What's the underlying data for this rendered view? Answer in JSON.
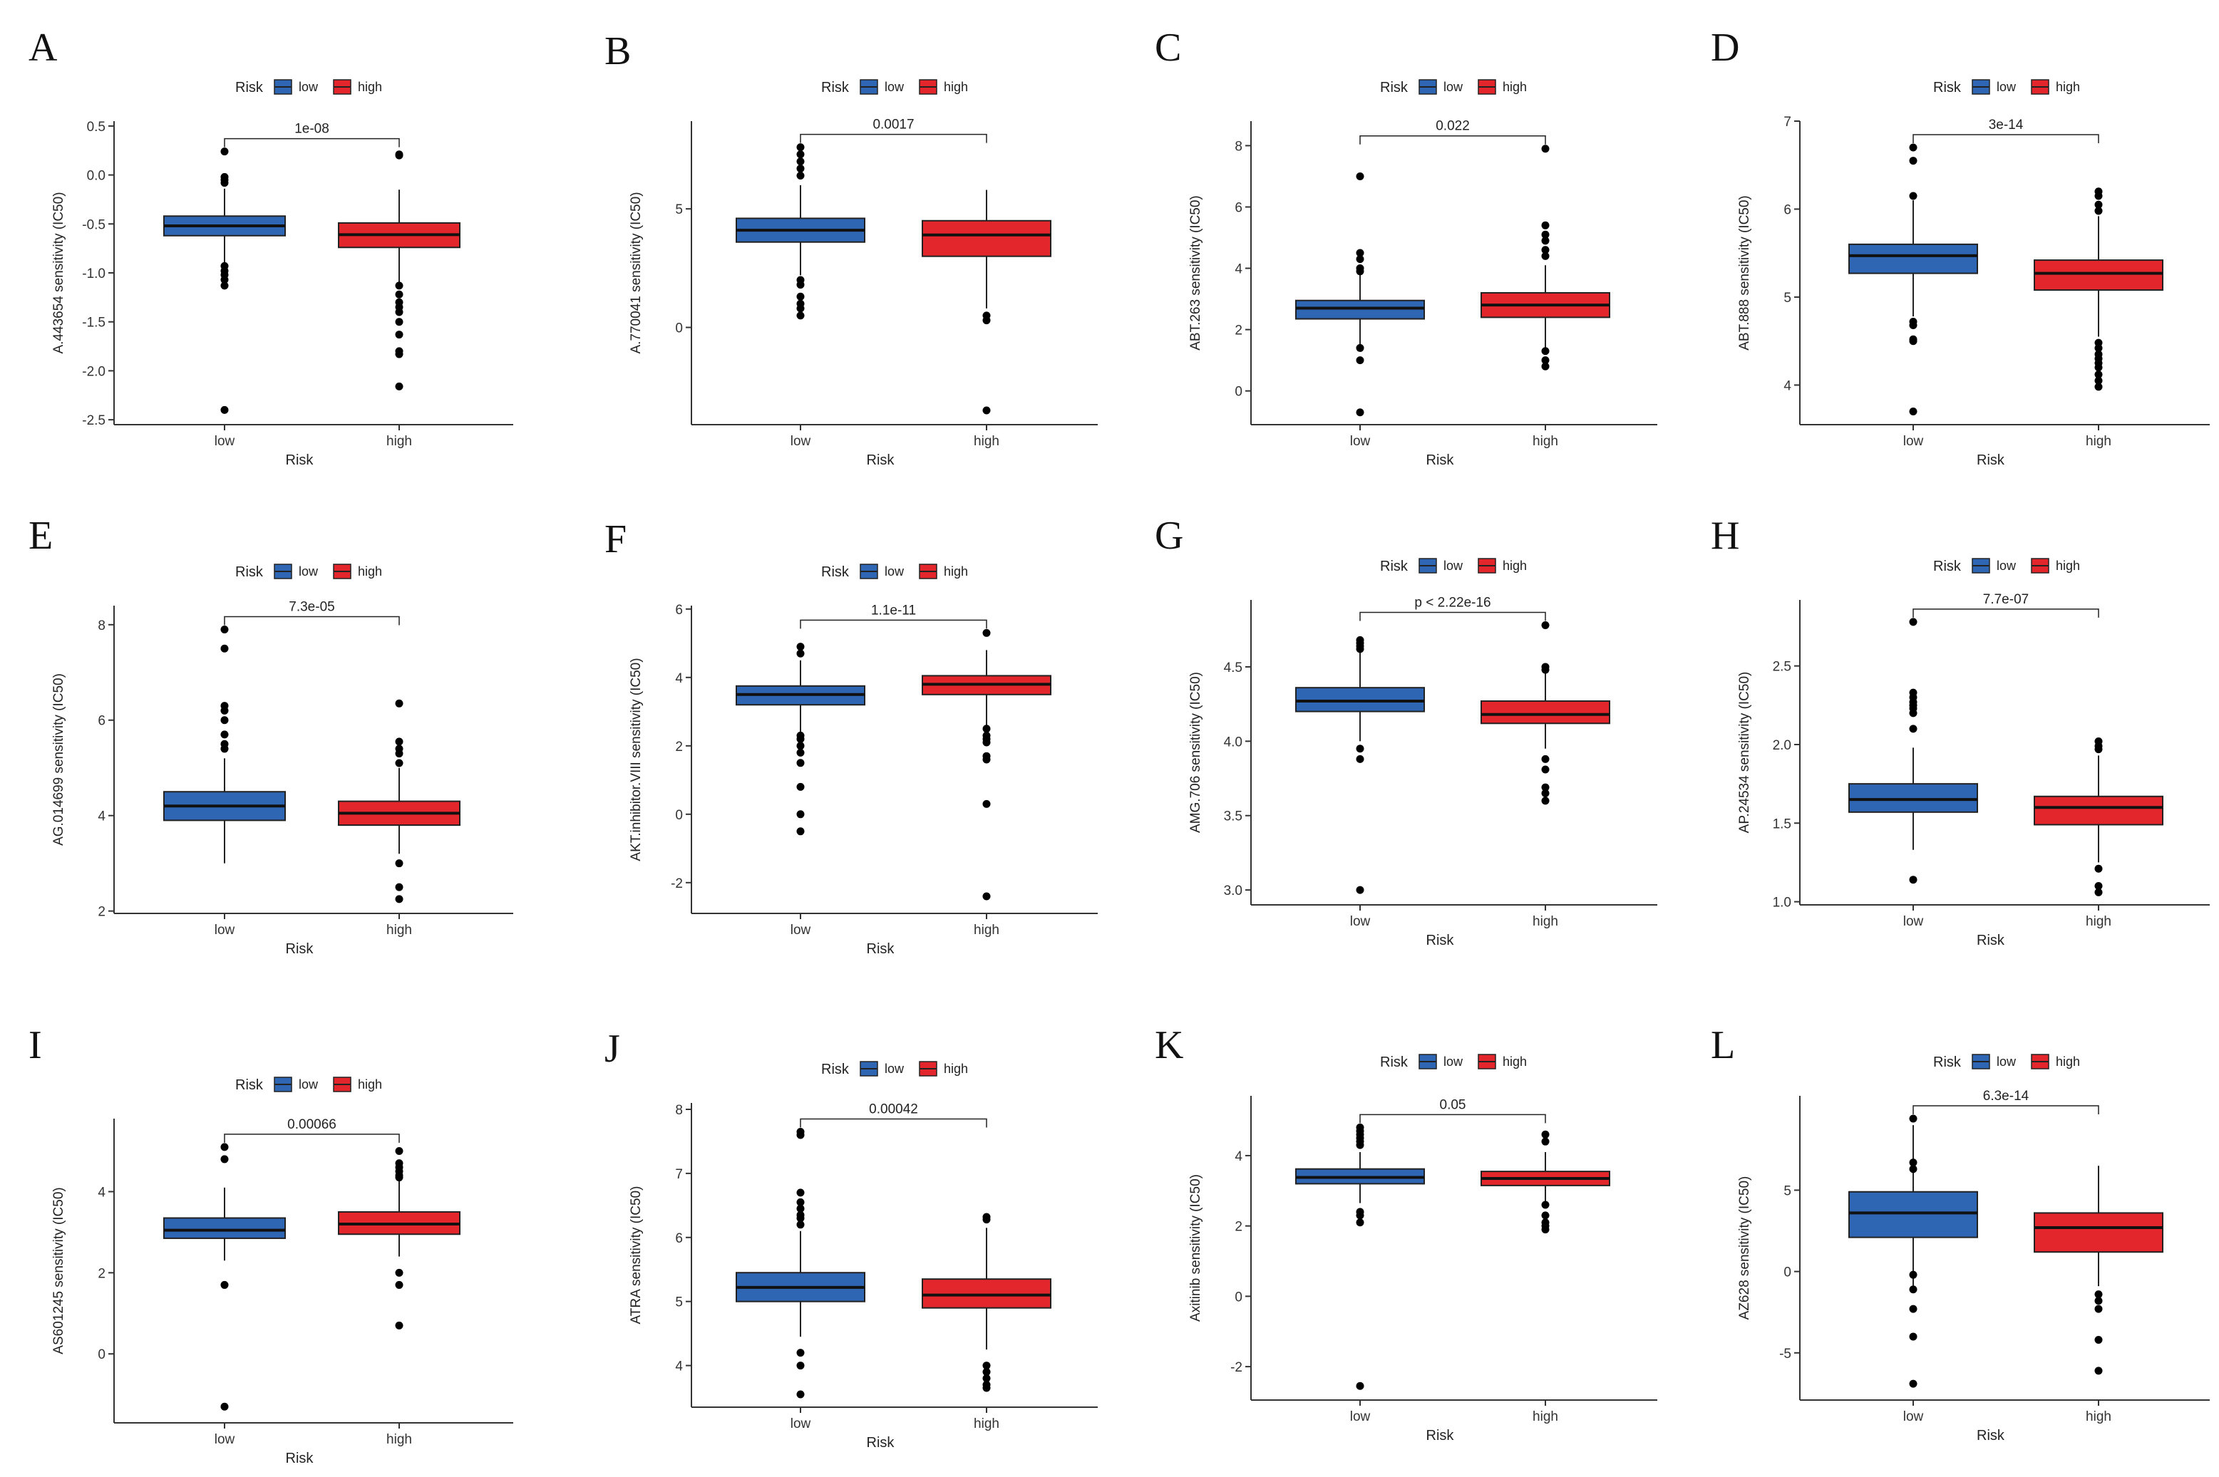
{
  "colors": {
    "low": "#2f66b3",
    "high": "#e3262b",
    "axis": "#333333",
    "point": "#000000"
  },
  "chart_data": [
    {
      "panel": "A",
      "type": "box",
      "ylabel": "A.443654 sensitivity (IC50)",
      "xlabel": "Risk",
      "legend_title": "Risk",
      "legend": [
        "low",
        "high"
      ],
      "categories": [
        "low",
        "high"
      ],
      "ylim": [
        -2.55,
        0.55
      ],
      "yticks": [
        "-2.5",
        "-2.0",
        "-1.5",
        "-1.0",
        "-0.5",
        "0.0",
        "0.5"
      ],
      "pvalue": "1e-08",
      "groups": [
        {
          "name": "low",
          "q1": -0.62,
          "median": -0.52,
          "q3": -0.42,
          "whisker_low": -0.91,
          "whisker_high": -0.14,
          "outliers": [
            0.24,
            -0.02,
            -0.05,
            -0.08,
            -0.93,
            -0.98,
            -1.02,
            -1.07,
            -1.13,
            -2.4
          ]
        },
        {
          "name": "high",
          "q1": -0.74,
          "median": -0.61,
          "q3": -0.49,
          "whisker_low": -1.11,
          "whisker_high": -0.15,
          "outliers": [
            0.21,
            0.2,
            -1.13,
            -1.22,
            -1.3,
            -1.35,
            -1.4,
            -1.5,
            -1.63,
            -1.8,
            -1.83,
            -2.16
          ]
        }
      ]
    },
    {
      "panel": "B",
      "type": "box",
      "ylabel": "A.770041 sensitivity (IC50)",
      "xlabel": "Risk",
      "legend_title": "Risk",
      "legend": [
        "low",
        "high"
      ],
      "categories": [
        "low",
        "high"
      ],
      "ylim": [
        -4.1,
        8.7
      ],
      "yticks": [
        "0",
        "5"
      ],
      "pvalue": "0.0017",
      "groups": [
        {
          "name": "low",
          "q1": 3.6,
          "median": 4.1,
          "q3": 4.6,
          "whisker_low": 2.2,
          "whisker_high": 6.0,
          "outliers": [
            7.6,
            7.3,
            7.0,
            6.7,
            6.4,
            2.0,
            1.8,
            1.3,
            1.0,
            0.8,
            0.5
          ]
        },
        {
          "name": "high",
          "q1": 3.0,
          "median": 3.9,
          "q3": 4.5,
          "whisker_low": 0.8,
          "whisker_high": 5.8,
          "outliers": [
            0.5,
            0.3,
            -3.5
          ]
        }
      ]
    },
    {
      "panel": "C",
      "type": "box",
      "ylabel": "ABT.263 sensitivity (IC50)",
      "xlabel": "Risk",
      "legend_title": "Risk",
      "legend": [
        "low",
        "high"
      ],
      "categories": [
        "low",
        "high"
      ],
      "ylim": [
        -1.1,
        8.8
      ],
      "yticks": [
        "0",
        "2",
        "4",
        "6",
        "8"
      ],
      "pvalue": "0.022",
      "groups": [
        {
          "name": "low",
          "q1": 2.35,
          "median": 2.7,
          "q3": 2.95,
          "whisker_low": 1.5,
          "whisker_high": 3.8,
          "outliers": [
            7.0,
            4.5,
            4.3,
            4.0,
            3.9,
            1.4,
            1.0,
            -0.7
          ]
        },
        {
          "name": "high",
          "q1": 2.4,
          "median": 2.8,
          "q3": 3.2,
          "whisker_low": 1.4,
          "whisker_high": 4.1,
          "outliers": [
            7.9,
            5.4,
            5.1,
            4.9,
            4.6,
            4.4,
            1.3,
            1.0,
            0.8
          ]
        }
      ]
    },
    {
      "panel": "D",
      "type": "box",
      "ylabel": "ABT.888 sensitivity (IC50)",
      "xlabel": "Risk",
      "legend_title": "Risk",
      "legend": [
        "low",
        "high"
      ],
      "categories": [
        "low",
        "high"
      ],
      "ylim": [
        3.55,
        7.0
      ],
      "yticks": [
        "4",
        "5",
        "6",
        "7"
      ],
      "pvalue": "3e-14",
      "groups": [
        {
          "name": "low",
          "q1": 5.27,
          "median": 5.47,
          "q3": 5.6,
          "whisker_low": 4.78,
          "whisker_high": 6.1,
          "outliers": [
            6.7,
            6.55,
            6.15,
            4.72,
            4.68,
            4.52,
            4.5,
            3.7
          ]
        },
        {
          "name": "high",
          "q1": 5.08,
          "median": 5.27,
          "q3": 5.42,
          "whisker_low": 4.55,
          "whisker_high": 5.92,
          "outliers": [
            6.2,
            6.15,
            6.05,
            5.98,
            4.48,
            4.42,
            4.35,
            4.3,
            4.25,
            4.2,
            4.12,
            4.05,
            3.98
          ]
        }
      ]
    },
    {
      "panel": "E",
      "type": "box",
      "ylabel": "AG.014699 sensitivity (IC50)",
      "xlabel": "Risk",
      "legend_title": "Risk",
      "legend": [
        "low",
        "high"
      ],
      "categories": [
        "low",
        "high"
      ],
      "ylim": [
        1.95,
        8.4
      ],
      "yticks": [
        "2",
        "4",
        "6",
        "8"
      ],
      "pvalue": "7.3e-05",
      "groups": [
        {
          "name": "low",
          "q1": 3.9,
          "median": 4.2,
          "q3": 4.5,
          "whisker_low": 3.0,
          "whisker_high": 5.2,
          "outliers": [
            7.9,
            7.5,
            6.3,
            6.2,
            6.0,
            5.7,
            5.5,
            5.4
          ]
        },
        {
          "name": "high",
          "q1": 3.8,
          "median": 4.05,
          "q3": 4.3,
          "whisker_low": 3.2,
          "whisker_high": 5.0,
          "outliers": [
            6.35,
            5.55,
            5.4,
            5.3,
            5.1,
            3.0,
            2.5,
            2.25
          ]
        }
      ]
    },
    {
      "panel": "F",
      "type": "box",
      "ylabel": "AKT.inhibitor.VIII sensitivity (IC50)",
      "xlabel": "Risk",
      "legend_title": "Risk",
      "legend": [
        "low",
        "high"
      ],
      "categories": [
        "low",
        "high"
      ],
      "ylim": [
        -2.9,
        6.1
      ],
      "yticks": [
        "-2",
        "0",
        "2",
        "4",
        "6"
      ],
      "pvalue": "1.1e-11",
      "groups": [
        {
          "name": "low",
          "q1": 3.2,
          "median": 3.5,
          "q3": 3.75,
          "whisker_low": 2.4,
          "whisker_high": 4.5,
          "outliers": [
            4.9,
            4.7,
            2.3,
            2.2,
            2.0,
            1.8,
            1.5,
            0.8,
            0.0,
            -0.5
          ]
        },
        {
          "name": "high",
          "q1": 3.5,
          "median": 3.8,
          "q3": 4.05,
          "whisker_low": 2.6,
          "whisker_high": 4.8,
          "outliers": [
            5.3,
            2.5,
            2.3,
            2.2,
            2.1,
            1.7,
            1.6,
            0.3,
            -2.4
          ]
        }
      ]
    },
    {
      "panel": "G",
      "type": "box",
      "ylabel": "AMG.706 sensitivity (IC50)",
      "xlabel": "Risk",
      "legend_title": "Risk",
      "legend": [
        "low",
        "high"
      ],
      "categories": [
        "low",
        "high"
      ],
      "ylim": [
        2.9,
        4.95
      ],
      "yticks": [
        "3.0",
        "3.5",
        "4.0",
        "4.5"
      ],
      "pvalue": "p < 2.22e-16",
      "groups": [
        {
          "name": "low",
          "q1": 4.2,
          "median": 4.27,
          "q3": 4.36,
          "whisker_low": 4.0,
          "whisker_high": 4.6,
          "outliers": [
            4.68,
            4.66,
            4.64,
            4.62,
            3.95,
            3.88,
            3.0
          ]
        },
        {
          "name": "high",
          "q1": 4.12,
          "median": 4.18,
          "q3": 4.27,
          "whisker_low": 3.95,
          "whisker_high": 4.46,
          "outliers": [
            4.78,
            4.5,
            4.48,
            3.88,
            3.81,
            3.69,
            3.65,
            3.6
          ]
        }
      ]
    },
    {
      "panel": "H",
      "type": "box",
      "ylabel": "AP.24534 sensitivity (IC50)",
      "xlabel": "Risk",
      "legend_title": "Risk",
      "legend": [
        "low",
        "high"
      ],
      "categories": [
        "low",
        "high"
      ],
      "ylim": [
        0.98,
        2.92
      ],
      "yticks": [
        "1.0",
        "1.5",
        "2.0",
        "2.5"
      ],
      "pvalue": "7.7e-07",
      "groups": [
        {
          "name": "low",
          "q1": 1.57,
          "median": 1.65,
          "q3": 1.75,
          "whisker_low": 1.33,
          "whisker_high": 1.98,
          "outliers": [
            2.78,
            2.33,
            2.3,
            2.27,
            2.25,
            2.23,
            2.2,
            2.1,
            1.14
          ]
        },
        {
          "name": "high",
          "q1": 1.49,
          "median": 1.6,
          "q3": 1.67,
          "whisker_low": 1.25,
          "whisker_high": 1.93,
          "outliers": [
            2.02,
            1.99,
            1.97,
            1.21,
            1.1,
            1.06
          ]
        }
      ]
    },
    {
      "panel": "I",
      "type": "box",
      "ylabel": "AS601245 sensitivity (IC50)",
      "xlabel": "Risk",
      "legend_title": "Risk",
      "legend": [
        "low",
        "high"
      ],
      "categories": [
        "low",
        "high"
      ],
      "ylim": [
        -1.7,
        5.8
      ],
      "yticks": [
        "0",
        "2",
        "4"
      ],
      "pvalue": "0.00066",
      "groups": [
        {
          "name": "low",
          "q1": 2.85,
          "median": 3.05,
          "q3": 3.35,
          "whisker_low": 2.3,
          "whisker_high": 4.1,
          "outliers": [
            5.1,
            4.8,
            1.7,
            -1.3
          ]
        },
        {
          "name": "high",
          "q1": 2.95,
          "median": 3.2,
          "q3": 3.5,
          "whisker_low": 2.4,
          "whisker_high": 4.3,
          "outliers": [
            5.0,
            4.7,
            4.6,
            4.5,
            4.4,
            4.35,
            2.0,
            1.7,
            0.7
          ]
        }
      ]
    },
    {
      "panel": "J",
      "type": "box",
      "ylabel": "ATRA sensitivity (IC50)",
      "xlabel": "Risk",
      "legend_title": "Risk",
      "legend": [
        "low",
        "high"
      ],
      "categories": [
        "low",
        "high"
      ],
      "ylim": [
        3.35,
        8.1
      ],
      "yticks": [
        "4",
        "5",
        "6",
        "7",
        "8"
      ],
      "pvalue": "0.00042",
      "groups": [
        {
          "name": "low",
          "q1": 5.0,
          "median": 5.22,
          "q3": 5.45,
          "whisker_low": 4.45,
          "whisker_high": 6.1,
          "outliers": [
            7.65,
            7.6,
            6.7,
            6.55,
            6.45,
            6.35,
            6.3,
            6.2,
            4.2,
            4.0,
            3.55
          ]
        },
        {
          "name": "high",
          "q1": 4.9,
          "median": 5.1,
          "q3": 5.35,
          "whisker_low": 4.25,
          "whisker_high": 6.15,
          "outliers": [
            6.32,
            6.28,
            4.0,
            3.9,
            3.8,
            3.7,
            3.65
          ]
        }
      ]
    },
    {
      "panel": "K",
      "type": "box",
      "ylabel": "Axitinib sensitivity (IC50)",
      "xlabel": "Risk",
      "legend_title": "Risk",
      "legend": [
        "low",
        "high"
      ],
      "categories": [
        "low",
        "high"
      ],
      "ylim": [
        -2.95,
        5.7
      ],
      "yticks": [
        "-2",
        "0",
        "2",
        "4"
      ],
      "pvalue": "0.05",
      "groups": [
        {
          "name": "low",
          "q1": 3.2,
          "median": 3.38,
          "q3": 3.62,
          "whisker_low": 2.65,
          "whisker_high": 4.1,
          "outliers": [
            4.8,
            4.7,
            4.6,
            4.5,
            4.4,
            4.3,
            2.4,
            2.3,
            2.1,
            -2.55
          ]
        },
        {
          "name": "high",
          "q1": 3.15,
          "median": 3.35,
          "q3": 3.55,
          "whisker_low": 2.7,
          "whisker_high": 4.1,
          "outliers": [
            4.6,
            4.4,
            2.6,
            2.3,
            2.1,
            2.0,
            1.9
          ]
        }
      ]
    },
    {
      "panel": "L",
      "type": "box",
      "ylabel": "AZ628 sensitivity (IC50)",
      "xlabel": "Risk",
      "legend_title": "Risk",
      "legend": [
        "low",
        "high"
      ],
      "categories": [
        "low",
        "high"
      ],
      "ylim": [
        -7.9,
        10.8
      ],
      "yticks": [
        "-5",
        "0",
        "5"
      ],
      "pvalue": "6.3e-14",
      "groups": [
        {
          "name": "low",
          "q1": 2.1,
          "median": 3.6,
          "q3": 4.9,
          "whisker_low": -0.9,
          "whisker_high": 9.0,
          "outliers": [
            9.4,
            6.7,
            6.3,
            -0.2,
            -1.1,
            -2.3,
            -4.0,
            -6.9
          ]
        },
        {
          "name": "high",
          "q1": 1.2,
          "median": 2.7,
          "q3": 3.6,
          "whisker_low": -0.9,
          "whisker_high": 6.5,
          "outliers": [
            -1.4,
            -1.8,
            -2.3,
            -4.2,
            -6.1
          ]
        }
      ]
    }
  ]
}
